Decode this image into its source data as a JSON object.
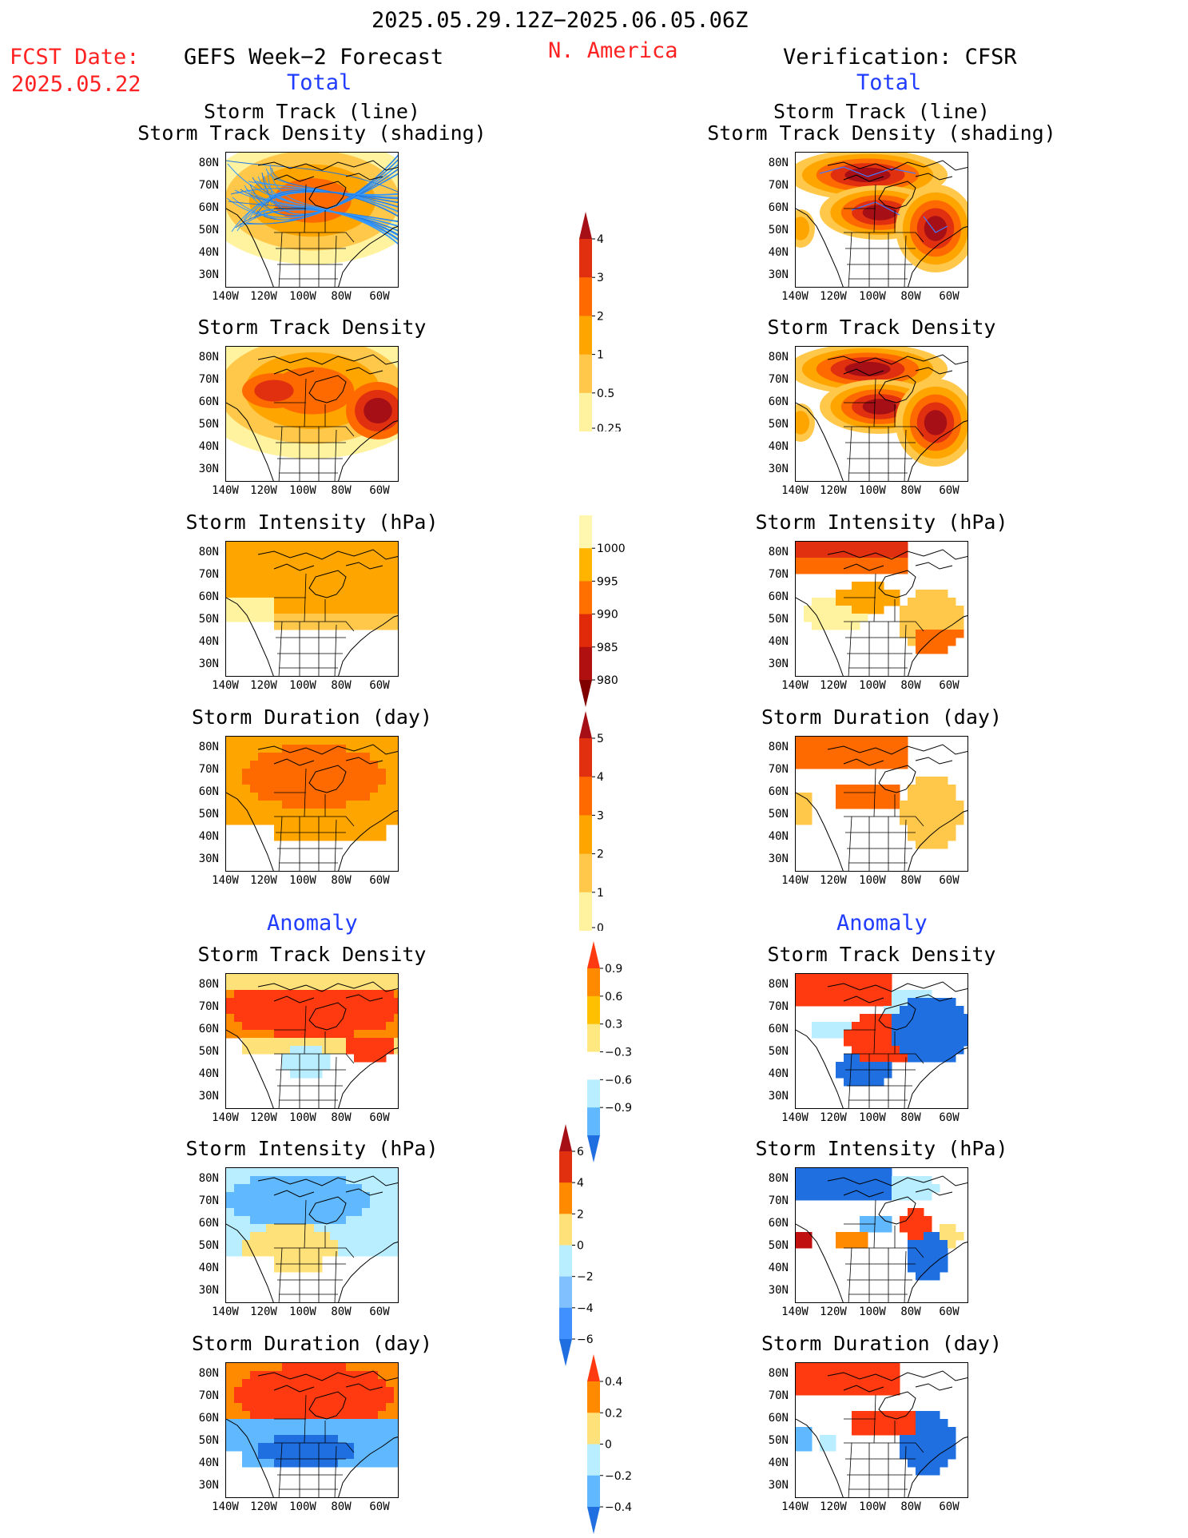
{
  "header": {
    "date_range": "2025.05.29.12Z−2025.06.05.06Z",
    "fcst_label": "FCST Date:",
    "fcst_date": "2025.05.22",
    "left_title": "GEFS Week−2 Forecast",
    "region": "N. America",
    "right_title": "Verification: CFSR",
    "total_label": "Total",
    "anomaly_label": "Anomaly"
  },
  "axes": {
    "lat_ticks": [
      "80N",
      "70N",
      "60N",
      "50N",
      "40N",
      "30N"
    ],
    "lon_ticks": [
      "140W",
      "120W",
      "100W",
      "80W",
      "60W"
    ]
  },
  "rows": [
    {
      "title_lines": [
        "Storm Track (line)",
        "Storm Track Density (shading)"
      ],
      "field": "track"
    },
    {
      "title_lines": [
        "Storm Track Density"
      ],
      "field": "density"
    },
    {
      "title_lines": [
        "Storm Intensity (hPa)"
      ],
      "field": "intensity"
    },
    {
      "title_lines": [
        "Storm Duration (day)"
      ],
      "field": "duration"
    },
    {
      "title_lines": [
        "Storm Track Density"
      ],
      "field": "density_anom"
    },
    {
      "title_lines": [
        "Storm Intensity (hPa)"
      ],
      "field": "intensity_anom"
    },
    {
      "title_lines": [
        "Storm Duration (day)"
      ],
      "field": "duration_anom"
    }
  ],
  "colorbars": [
    {
      "name": "density",
      "labels": [
        "4",
        "3",
        "2",
        "1",
        "0.5",
        "0.25"
      ],
      "colors": [
        "#a50f15",
        "#e03010",
        "#ff6a00",
        "#ffa500",
        "#ffc84a",
        "#fff3a0"
      ]
    },
    {
      "name": "intensity",
      "labels": [
        "1000",
        "995",
        "990",
        "985",
        "980"
      ],
      "colors": [
        "#fff6b0",
        "#ffb400",
        "#ff7000",
        "#e02a0a",
        "#b01010",
        "#800000"
      ]
    },
    {
      "name": "duration",
      "labels": [
        "5",
        "4",
        "3",
        "2",
        "1",
        "0"
      ],
      "colors": [
        "#a50f15",
        "#e03010",
        "#ff6a00",
        "#ffa500",
        "#ffc84a",
        "#fff3a0"
      ]
    },
    {
      "name": "density_anom",
      "labels": [
        "0.9",
        "0.6",
        "0.3",
        "−0.3",
        "−0.6",
        "−0.9"
      ],
      "colors": [
        "#ff3a10",
        "#ff8a00",
        "#ffc000",
        "#ffe880",
        "#ffffff",
        "#b8eeff",
        "#60b8ff",
        "#1f6fe0"
      ]
    },
    {
      "name": "intensity_anom",
      "labels": [
        "6",
        "4",
        "2",
        "0",
        "−2",
        "−4",
        "−6"
      ],
      "colors": [
        "#a50f15",
        "#e03010",
        "#ff8a00",
        "#ffe17a",
        "#b8eeff",
        "#80c0ff",
        "#4090ff",
        "#1f6fe0"
      ]
    },
    {
      "name": "duration_anom",
      "labels": [
        "0.4",
        "0.2",
        "0",
        "−0.2",
        "−0.4"
      ],
      "colors": [
        "#ff3a10",
        "#ff8a00",
        "#ffe17a",
        "#b8eeff",
        "#60b8ff",
        "#1f6fe0"
      ]
    }
  ]
}
